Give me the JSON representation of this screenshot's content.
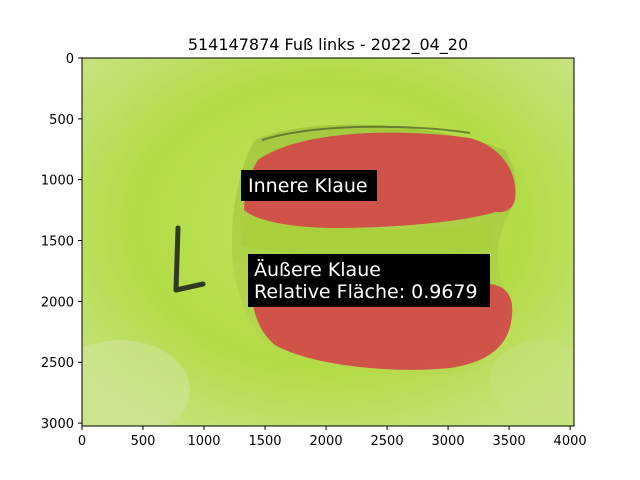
{
  "title": "514147874 Fuß links - 2022_04_20",
  "axes": {
    "x_ticks": [
      "0",
      "500",
      "1000",
      "1500",
      "2000",
      "2500",
      "3000",
      "3500",
      "4000"
    ],
    "y_ticks": [
      "0",
      "500",
      "1000",
      "1500",
      "2000",
      "2500",
      "3000"
    ],
    "x_range": [
      0,
      4032
    ],
    "y_range": [
      3024,
      0
    ]
  },
  "annotations": {
    "inner": {
      "line1": "Innere Klaue"
    },
    "outer": {
      "line1": "Äußere Klaue",
      "line2": "Relative Fläche: 0.9679"
    }
  },
  "colors": {
    "background_mat": "#b5df4a",
    "mask_red": "#d2484a",
    "label_box": "#000000",
    "label_text": "#ffffff"
  }
}
